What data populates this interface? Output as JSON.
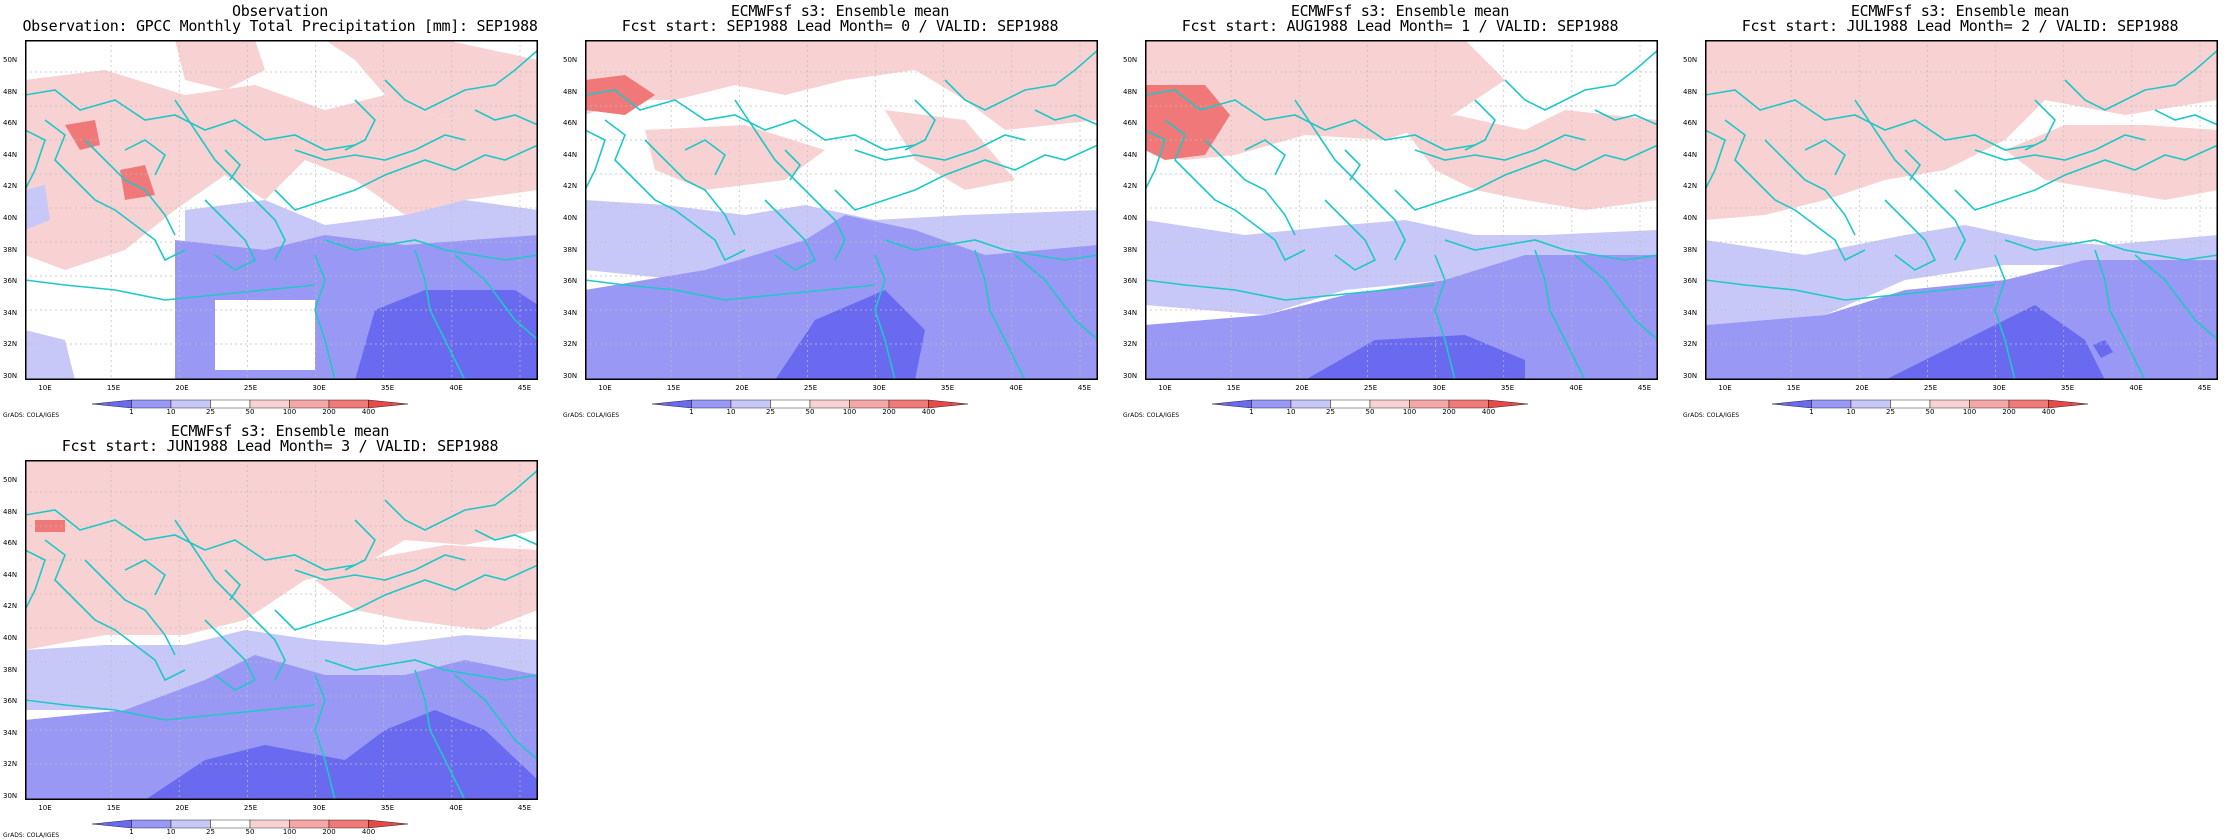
{
  "panels": [
    {
      "title_line1": "Observation",
      "title_line2": "Observation: GPCC Monthly Total Precipitation [mm]: SEP1988",
      "variant": "obs"
    },
    {
      "title_line1": "ECMWFsf s3: Ensemble mean",
      "title_line2": "Fcst start: SEP1988  Lead Month= 0 / VALID: SEP1988",
      "variant": "lead0"
    },
    {
      "title_line1": "ECMWFsf s3: Ensemble mean",
      "title_line2": "Fcst start: AUG1988  Lead Month= 1 / VALID: SEP1988",
      "variant": "lead1"
    },
    {
      "title_line1": "ECMWFsf s3: Ensemble mean",
      "title_line2": "Fcst start: JUL1988  Lead Month= 2 / VALID: SEP1988",
      "variant": "lead2"
    },
    {
      "title_line1": "ECMWFsf s3: Ensemble mean",
      "title_line2": "Fcst start: JUN1988  Lead Month= 3 / VALID: SEP1988",
      "variant": "lead3"
    }
  ],
  "lat_ticks": [
    "50N",
    "48N",
    "46N",
    "44N",
    "42N",
    "40N",
    "38N",
    "36N",
    "34N",
    "32N",
    "30N"
  ],
  "lon_ticks": [
    "10E",
    "15E",
    "20E",
    "25E",
    "30E",
    "35E",
    "40E",
    "45E"
  ],
  "colorbar_levels": [
    "1",
    "10",
    "25",
    "50",
    "100",
    "200",
    "400"
  ],
  "colorbar_colors": [
    "#6a6af0",
    "#9999f5",
    "#c8c8f8",
    "#ffffff",
    "#f8d2d2",
    "#f5a6a6",
    "#f07878",
    "#e84848"
  ],
  "credit": "GrADS: COLA/IGES",
  "colors": {
    "coast": "#1fc7c7",
    "grid": "#bdbdbd",
    "frame": "#000000"
  }
}
